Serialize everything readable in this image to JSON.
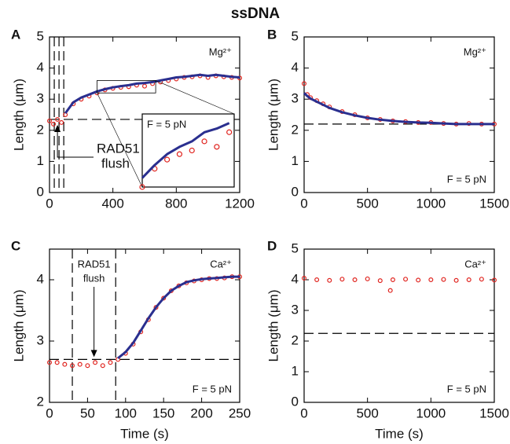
{
  "figure_title": "ssDNA",
  "chart_data": [
    {
      "type": "line",
      "panel": "A",
      "y_label": "Length (μm)",
      "ion": "Mg²⁺",
      "annotation": [
        "RAD51",
        "flush"
      ],
      "xlim": [
        0,
        1200
      ],
      "xticks": [
        0,
        400,
        800,
        1200
      ],
      "ylim": [
        0,
        5
      ],
      "yticks": [
        0,
        1,
        2,
        3,
        4,
        5
      ],
      "hlines": [
        2.35
      ],
      "vlines": [
        30,
        60,
        90
      ],
      "inset": {
        "xlim": [
          300,
          670
        ],
        "ylim": [
          3.2,
          3.6
        ],
        "label": "F = 5 pN"
      },
      "x": [
        0,
        25,
        50,
        75,
        100,
        150,
        200,
        250,
        300,
        350,
        400,
        450,
        500,
        550,
        600,
        650,
        700,
        750,
        800,
        850,
        900,
        950,
        1000,
        1050,
        1100,
        1150,
        1200
      ],
      "series": [
        {
          "color": "#e0241f",
          "style": "points",
          "values": [
            2.3,
            2.2,
            2.35,
            2.25,
            2.5,
            2.85,
            3.0,
            3.1,
            3.2,
            3.3,
            3.35,
            3.38,
            3.4,
            3.45,
            3.42,
            3.5,
            3.55,
            3.6,
            3.65,
            3.7,
            3.72,
            3.75,
            3.7,
            3.75,
            3.72,
            3.7,
            3.68
          ]
        },
        {
          "color": "#2a2f8f",
          "style": "line",
          "values": [
            null,
            null,
            null,
            null,
            2.55,
            2.9,
            3.05,
            3.15,
            3.25,
            3.32,
            3.38,
            3.42,
            3.45,
            3.5,
            3.52,
            3.55,
            3.6,
            3.65,
            3.7,
            3.72,
            3.75,
            3.78,
            3.75,
            3.78,
            3.75,
            3.72,
            3.7
          ]
        }
      ]
    },
    {
      "type": "line",
      "panel": "B",
      "y_label": "Length (μm)",
      "ion": "Mg²⁺",
      "force": "F = 5 pN",
      "xlim": [
        0,
        1500
      ],
      "xticks": [
        0,
        500,
        1000,
        1500
      ],
      "ylim": [
        0,
        5
      ],
      "yticks": [
        0,
        1,
        2,
        3,
        4,
        5
      ],
      "hlines": [
        2.2
      ],
      "vlines": [],
      "x": [
        0,
        25,
        50,
        100,
        150,
        200,
        300,
        400,
        500,
        600,
        700,
        800,
        900,
        1000,
        1100,
        1200,
        1300,
        1400,
        1500
      ],
      "series": [
        {
          "color": "#e0241f",
          "style": "points",
          "values": [
            3.5,
            3.15,
            3.05,
            2.95,
            2.85,
            2.75,
            2.6,
            2.5,
            2.4,
            2.35,
            2.3,
            2.28,
            2.25,
            2.25,
            2.22,
            2.2,
            2.22,
            2.2,
            2.2
          ]
        },
        {
          "color": "#2a2f8f",
          "style": "line",
          "values": [
            3.2,
            3.1,
            3.02,
            2.92,
            2.82,
            2.72,
            2.58,
            2.48,
            2.4,
            2.34,
            2.3,
            2.27,
            2.25,
            2.24,
            2.22,
            2.2,
            2.2,
            2.2,
            2.2
          ]
        }
      ]
    },
    {
      "type": "line",
      "panel": "C",
      "y_label": "Length (μm)",
      "x_label": "Time (s)",
      "ion": "Ca²⁺",
      "force": "F = 5 pN",
      "annotation": [
        "RAD51",
        "flush"
      ],
      "xlim": [
        0,
        250
      ],
      "xticks": [
        0,
        50,
        100,
        150,
        200,
        250
      ],
      "ylim": [
        2,
        4.5
      ],
      "yticks": [
        2,
        3,
        4
      ],
      "hlines": [
        2.7
      ],
      "vlines": [
        30,
        87
      ],
      "x": [
        0,
        10,
        20,
        30,
        40,
        50,
        60,
        70,
        80,
        90,
        100,
        110,
        120,
        130,
        140,
        150,
        160,
        170,
        180,
        190,
        200,
        210,
        220,
        230,
        240,
        250
      ],
      "series": [
        {
          "color": "#e0241f",
          "style": "points",
          "values": [
            2.65,
            2.65,
            2.62,
            2.6,
            2.62,
            2.6,
            2.65,
            2.6,
            2.65,
            2.7,
            2.8,
            2.95,
            3.15,
            3.35,
            3.55,
            3.7,
            3.82,
            3.9,
            3.95,
            3.98,
            4.0,
            4.02,
            4.02,
            4.03,
            4.05,
            4.05
          ]
        },
        {
          "color": "#2a2f8f",
          "style": "line",
          "values": [
            null,
            null,
            null,
            null,
            null,
            null,
            null,
            null,
            null,
            2.72,
            2.82,
            2.97,
            3.17,
            3.37,
            3.55,
            3.7,
            3.82,
            3.9,
            3.96,
            3.99,
            4.01,
            4.02,
            4.03,
            4.04,
            4.05,
            4.05
          ]
        }
      ]
    },
    {
      "type": "line",
      "panel": "D",
      "y_label": "Length (μm)",
      "x_label": "Time (s)",
      "ion": "Ca²⁺",
      "force": "F = 5 pN",
      "xlim": [
        0,
        1500
      ],
      "xticks": [
        0,
        500,
        1000,
        1500
      ],
      "ylim": [
        0,
        5
      ],
      "yticks": [
        0,
        1,
        2,
        3,
        4,
        5
      ],
      "hlines": [
        2.25
      ],
      "vlines": [],
      "x": [
        0,
        100,
        200,
        300,
        400,
        500,
        600,
        680,
        700,
        800,
        900,
        1000,
        1100,
        1200,
        1300,
        1400,
        1500
      ],
      "series": [
        {
          "color": "#e0241f",
          "style": "points",
          "values": [
            4.05,
            4.0,
            3.98,
            4.02,
            4.0,
            4.03,
            3.97,
            3.65,
            4.0,
            4.02,
            3.99,
            4.0,
            4.01,
            3.98,
            4.0,
            4.02,
            3.99
          ]
        }
      ]
    }
  ]
}
